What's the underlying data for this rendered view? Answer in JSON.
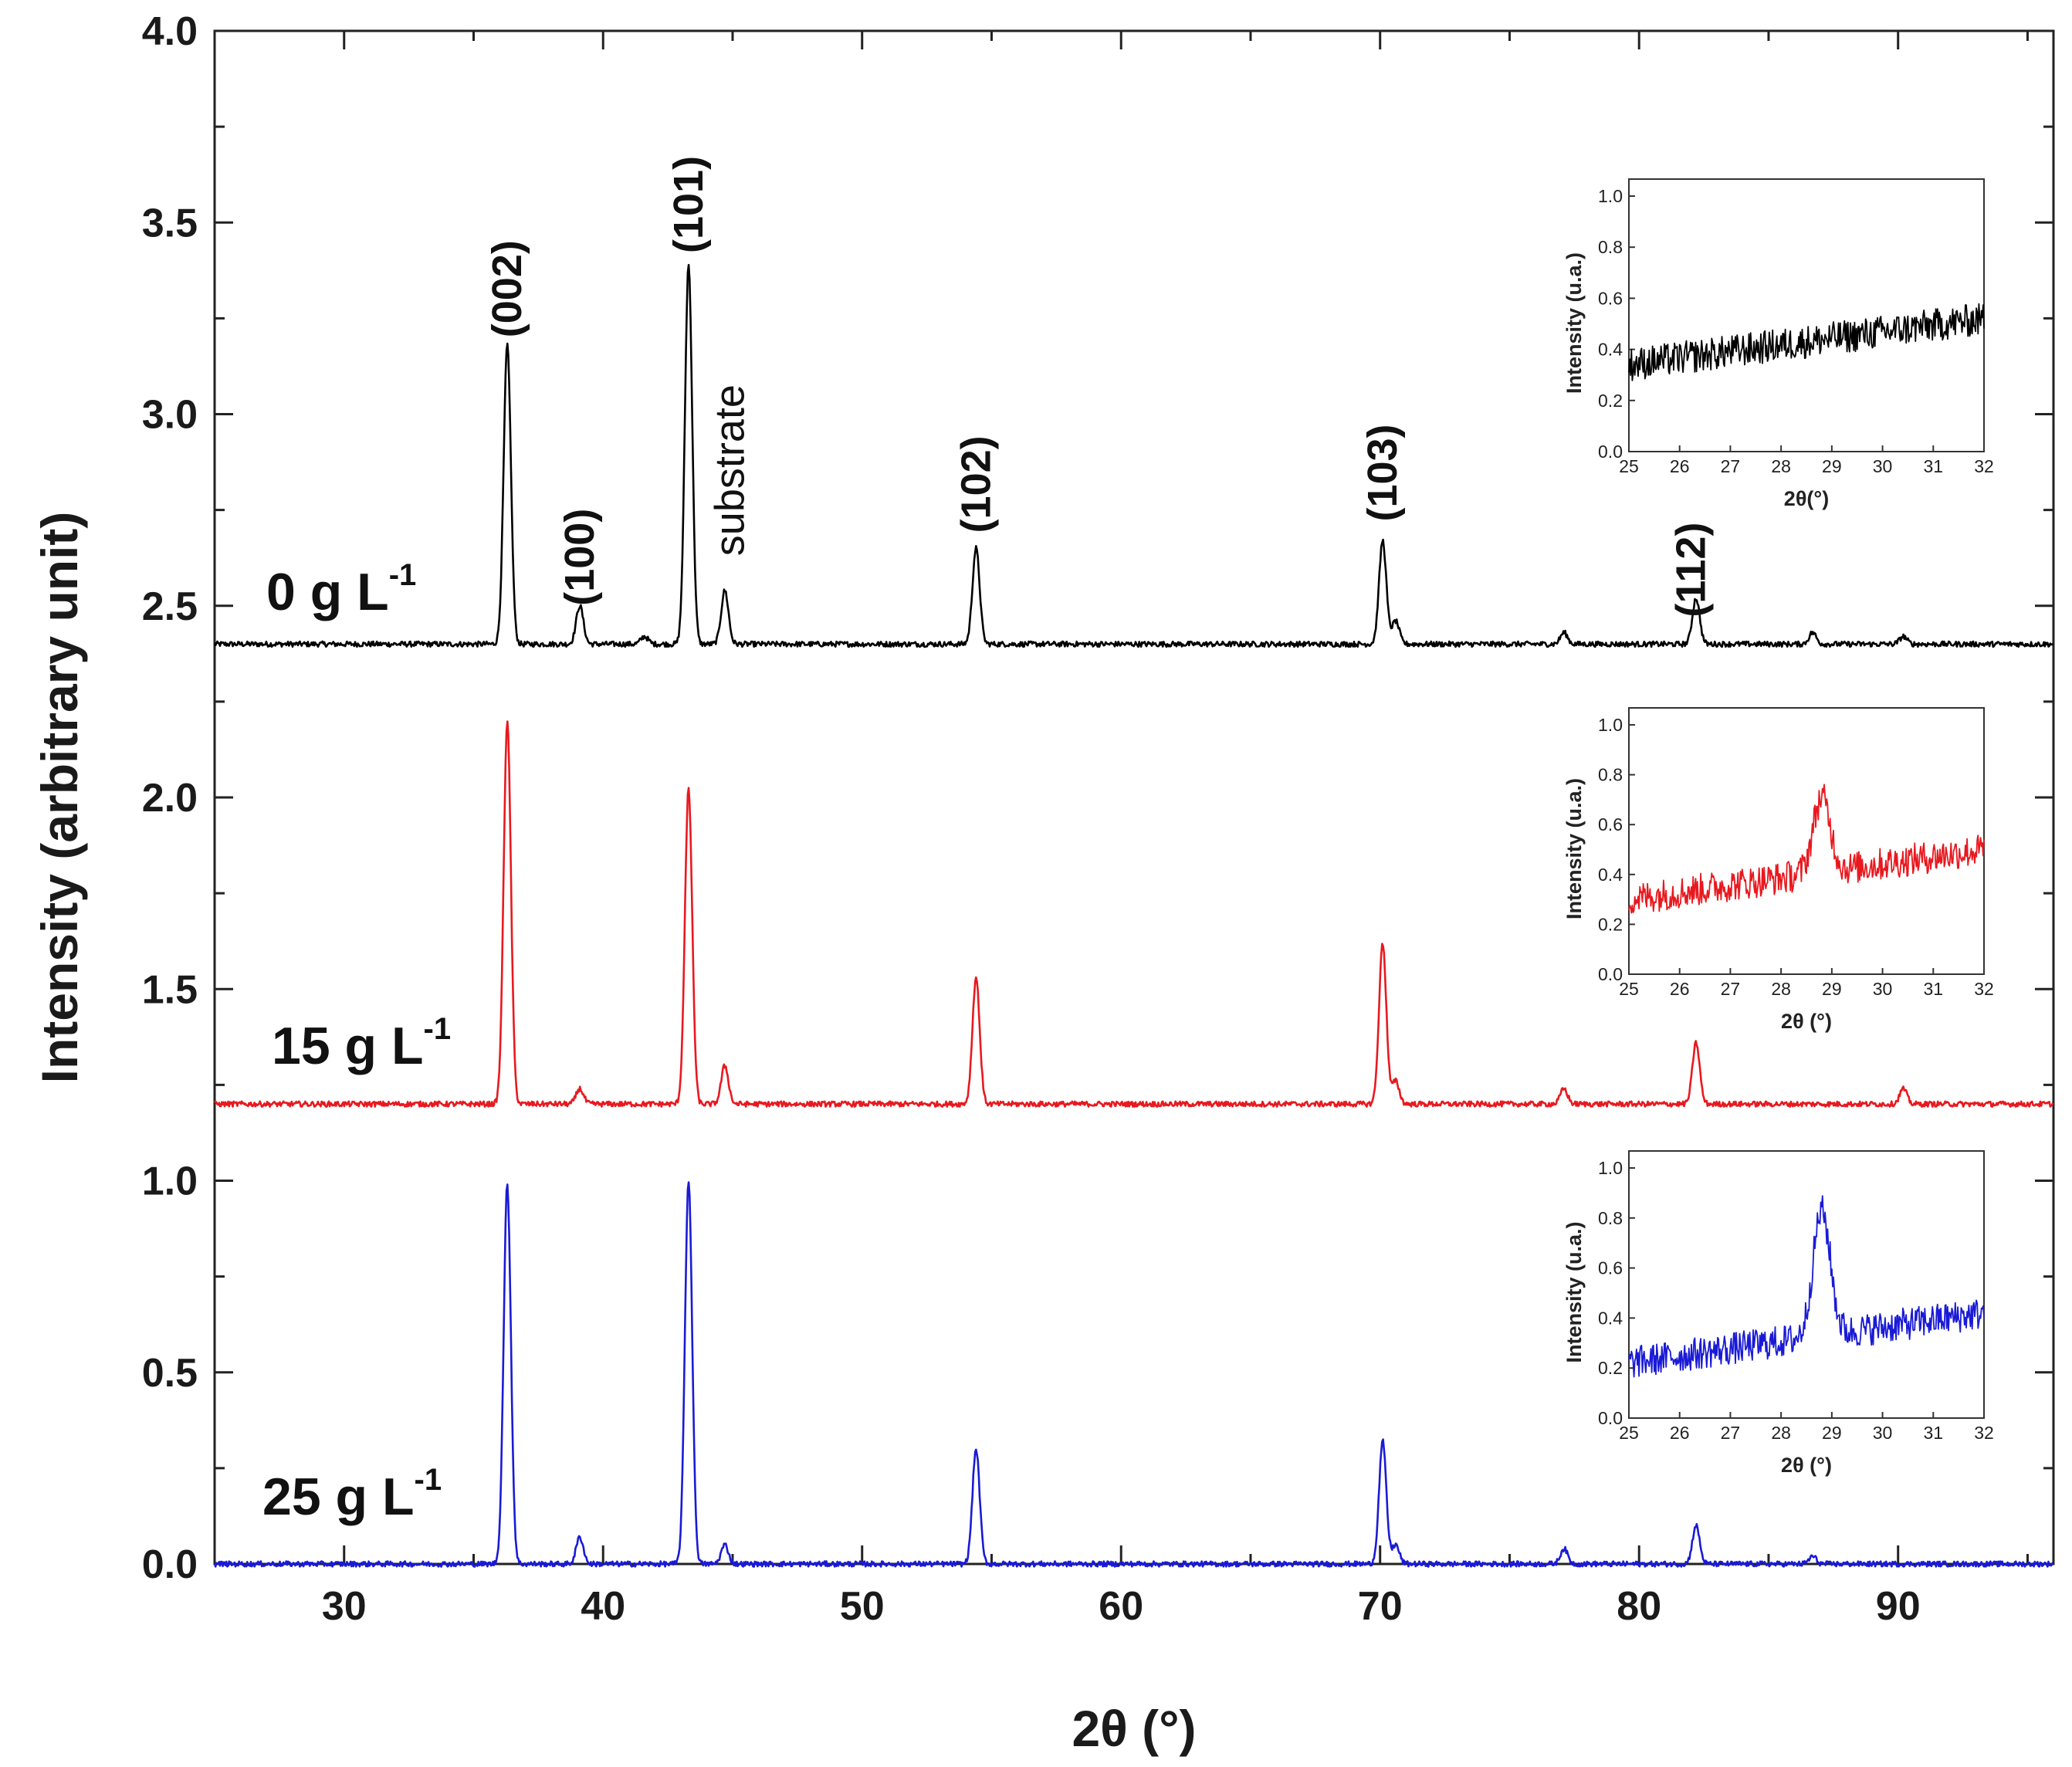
{
  "chart_data": {
    "type": "line",
    "title": "",
    "xlabel": "2θ (°)",
    "ylabel": "Intensity (arbitrary unit)",
    "xlim": [
      25,
      96
    ],
    "ylim": [
      0,
      4.0
    ],
    "xticks": [
      30,
      40,
      50,
      60,
      70,
      80,
      90
    ],
    "yticks": [
      0.0,
      0.5,
      1.0,
      1.5,
      2.0,
      2.5,
      3.0,
      3.5,
      4.0
    ],
    "xtick_labels": [
      "30",
      "40",
      "50",
      "60",
      "70",
      "80",
      "90"
    ],
    "ytick_labels": [
      "0.0",
      "0.5",
      "1.0",
      "1.5",
      "2.0",
      "2.5",
      "3.0",
      "3.5",
      "4.0"
    ],
    "series": [
      {
        "name": "0 g L-1",
        "label_main": "0 g L",
        "label_sup": "-1",
        "color": "#000000",
        "baseline": 2.4,
        "peaks": [
          {
            "x": 36.3,
            "height": 0.78
          },
          {
            "x": 39.1,
            "height": 0.1
          },
          {
            "x": 41.6,
            "height": 0.02
          },
          {
            "x": 43.3,
            "height": 0.99
          },
          {
            "x": 44.7,
            "height": 0.14
          },
          {
            "x": 54.4,
            "height": 0.25
          },
          {
            "x": 70.1,
            "height": 0.27
          },
          {
            "x": 70.6,
            "height": 0.06
          },
          {
            "x": 77.1,
            "height": 0.03
          },
          {
            "x": 82.2,
            "height": 0.12
          },
          {
            "x": 86.7,
            "height": 0.03
          },
          {
            "x": 90.2,
            "height": 0.02
          }
        ]
      },
      {
        "name": "15 g L-1",
        "label_main": "15 g L",
        "label_sup": "-1",
        "color": "#e8191f",
        "baseline": 1.2,
        "peaks": [
          {
            "x": 36.3,
            "height": 1.0
          },
          {
            "x": 39.1,
            "height": 0.04
          },
          {
            "x": 43.3,
            "height": 0.82
          },
          {
            "x": 44.7,
            "height": 0.1
          },
          {
            "x": 54.4,
            "height": 0.33
          },
          {
            "x": 70.1,
            "height": 0.42
          },
          {
            "x": 70.6,
            "height": 0.06
          },
          {
            "x": 77.1,
            "height": 0.04
          },
          {
            "x": 82.2,
            "height": 0.16
          },
          {
            "x": 90.2,
            "height": 0.04
          }
        ]
      },
      {
        "name": "25 g L-1",
        "label_main": "25 g L",
        "label_sup": "-1",
        "color": "#1a1ad6",
        "baseline": 0.0,
        "peaks": [
          {
            "x": 36.3,
            "height": 0.99
          },
          {
            "x": 39.1,
            "height": 0.07
          },
          {
            "x": 43.3,
            "height": 1.0
          },
          {
            "x": 44.7,
            "height": 0.05
          },
          {
            "x": 54.4,
            "height": 0.3
          },
          {
            "x": 70.1,
            "height": 0.32
          },
          {
            "x": 70.6,
            "height": 0.05
          },
          {
            "x": 77.1,
            "height": 0.04
          },
          {
            "x": 82.2,
            "height": 0.1
          },
          {
            "x": 86.7,
            "height": 0.02
          }
        ]
      }
    ],
    "annotations": [
      {
        "text": "(002)",
        "x": 36.3,
        "y": 3.2
      },
      {
        "text": "(100)",
        "x": 39.1,
        "y": 2.5
      },
      {
        "text": "(101)",
        "x": 43.3,
        "y": 3.42
      },
      {
        "text": "substrate",
        "x": 44.9,
        "y": 2.63
      },
      {
        "text": "(102)",
        "x": 54.4,
        "y": 2.69
      },
      {
        "text": "(103)",
        "x": 70.1,
        "y": 2.72
      },
      {
        "text": "(112)",
        "x": 82.0,
        "y": 2.47
      }
    ],
    "insets": [
      {
        "series": "0 g L-1",
        "color": "#000000",
        "xlabel": "2θ(°)",
        "ylabel": "Intensity (u.a.)",
        "xlim": [
          25,
          32
        ],
        "ylim": [
          0.0,
          1.0
        ],
        "xticks": [
          "25",
          "26",
          "27",
          "28",
          "29",
          "30",
          "31",
          "32"
        ],
        "yticks": [
          "0.0",
          "0.2",
          "0.4",
          "0.6",
          "0.8",
          "1.0"
        ],
        "baseline_start": 0.34,
        "baseline_end": 0.52,
        "peak_x": null,
        "peak_height": 0
      },
      {
        "series": "15 g L-1",
        "color": "#e8191f",
        "xlabel": "2θ (°)",
        "ylabel": "Intensity (u.a.)",
        "xlim": [
          25,
          32
        ],
        "ylim": [
          0.0,
          1.0
        ],
        "xticks": [
          "25",
          "26",
          "27",
          "28",
          "29",
          "30",
          "31",
          "32"
        ],
        "yticks": [
          "0.0",
          "0.2",
          "0.4",
          "0.6",
          "0.8",
          "1.0"
        ],
        "baseline_start": 0.3,
        "baseline_end": 0.5,
        "peak_x": 28.8,
        "peak_height": 0.3
      },
      {
        "series": "25 g L-1",
        "color": "#1a1ad6",
        "xlabel": "2θ (°)",
        "ylabel": "Intensity (u.a.)",
        "xlim": [
          25,
          32
        ],
        "ylim": [
          0.0,
          1.0
        ],
        "xticks": [
          "25",
          "26",
          "27",
          "28",
          "29",
          "30",
          "31",
          "32"
        ],
        "yticks": [
          "0.0",
          "0.2",
          "0.4",
          "0.6",
          "0.8",
          "1.0"
        ],
        "baseline_start": 0.22,
        "baseline_end": 0.42,
        "peak_x": 28.8,
        "peak_height": 0.5
      }
    ]
  }
}
